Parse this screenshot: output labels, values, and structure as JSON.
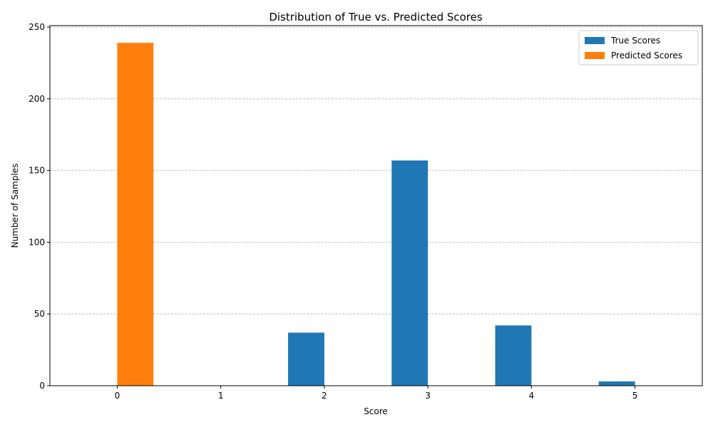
{
  "chart_data": {
    "type": "bar",
    "title": "Distribution of True vs. Predicted Scores",
    "xlabel": "Score",
    "ylabel": "Number of Samples",
    "categories": [
      "0",
      "1",
      "2",
      "3",
      "4",
      "5"
    ],
    "x": [
      0,
      1,
      2,
      3,
      4,
      5
    ],
    "series": [
      {
        "name": "True Scores",
        "color": "#1f77b4",
        "values": [
          0,
          0,
          37,
          157,
          42,
          3
        ]
      },
      {
        "name": "Predicted Scores",
        "color": "#ff7f0e",
        "values": [
          239,
          0,
          0,
          0,
          0,
          0
        ]
      }
    ],
    "xlim": [
      -0.65,
      5.65
    ],
    "ylim": [
      0,
      251
    ],
    "yticks": [
      0,
      50,
      100,
      150,
      200,
      250
    ],
    "grid": "y-dashed",
    "legend": "top-right"
  }
}
